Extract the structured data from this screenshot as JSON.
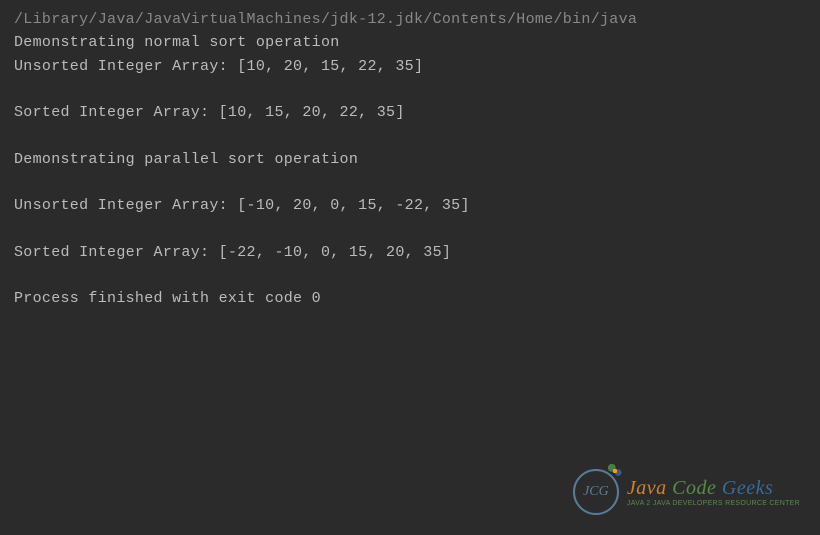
{
  "console": {
    "background_color": "#2b2b2b",
    "text_color": "#bbbbbb",
    "first_line_color": "#888888",
    "font_family": "Menlo, Monaco, Courier New, monospace",
    "font_size": 15,
    "lines": [
      "/Library/Java/JavaVirtualMachines/jdk-12.jdk/Contents/Home/bin/java",
      "Demonstrating normal sort operation",
      "Unsorted Integer Array: [10, 20, 15, 22, 35]",
      "",
      "Sorted Integer Array: [10, 15, 20, 22, 35]",
      "",
      "Demonstrating parallel sort operation",
      "",
      "Unsorted Integer Array: [-10, 20, 0, 15, -22, 35]",
      "",
      "Sorted Integer Array: [-22, -10, 0, 15, 20, 35]",
      "",
      "Process finished with exit code 0"
    ]
  },
  "watermark": {
    "badge_text": "JCG",
    "title_java": "Java",
    "title_code": "Code",
    "title_geeks": "Geeks",
    "subtitle": "Java 2 Java Developers Resource Center",
    "badge_border_color": "#5a7a9a",
    "java_color": "#d08030",
    "code_color": "#5a8a4a",
    "geeks_color": "#3a6a9a"
  }
}
